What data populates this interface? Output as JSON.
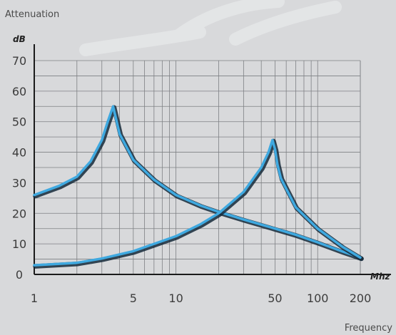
{
  "chart_data": {
    "type": "line",
    "title": "Attenuation",
    "xlabel": "Frequency",
    "ylabel": "dB",
    "x_unit": "Mhz",
    "x_scale": "log",
    "xlim": [
      1,
      200
    ],
    "ylim": [
      0,
      70
    ],
    "x_ticks": [
      1,
      5,
      10,
      50,
      100,
      200
    ],
    "x_tick_labels": [
      "1",
      "5",
      "10",
      "50",
      "100",
      "200"
    ],
    "y_ticks": [
      0,
      10,
      20,
      30,
      40,
      50,
      60,
      70
    ],
    "y_tick_labels": [
      "0",
      "10",
      "20",
      "30",
      "40",
      "50",
      "60",
      "70"
    ],
    "grid": true,
    "series": [
      {
        "color": "#3fa9e0",
        "x": [
          1,
          1.5,
          2,
          2.5,
          3,
          3.3,
          3.6,
          4,
          5,
          7,
          10,
          15,
          20,
          30,
          50,
          70,
          100,
          150,
          200
        ],
        "y": [
          26,
          29,
          32,
          37,
          44,
          50,
          55,
          46,
          37.5,
          31,
          26,
          22.5,
          20.5,
          18,
          15,
          13,
          10.5,
          7.5,
          5.5
        ]
      },
      {
        "color": "#3fa9e0",
        "x": [
          1,
          2,
          3,
          5,
          10,
          15,
          20,
          30,
          40,
          45,
          48,
          50,
          52,
          55,
          60,
          70,
          100,
          150,
          200
        ],
        "y": [
          3,
          3.8,
          5.2,
          7.6,
          12.5,
          16.5,
          20,
          27,
          35,
          40,
          44,
          41,
          36,
          31.5,
          28,
          22,
          15,
          9,
          5.5
        ]
      }
    ]
  }
}
